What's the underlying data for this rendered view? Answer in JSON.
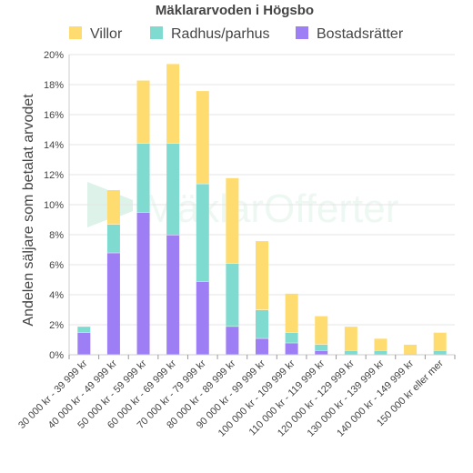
{
  "chart_data": {
    "type": "bar",
    "stacked": true,
    "title": "Mäklararvoden i Högsbo",
    "ylabel": "Andelen säljare som betalat arvodet",
    "xlabel": "",
    "ylim": [
      0,
      20
    ],
    "yticks": [
      "0%",
      "2%",
      "4%",
      "6%",
      "8%",
      "10%",
      "12%",
      "14%",
      "16%",
      "18%",
      "20%"
    ],
    "grid": true,
    "legend_position": "top",
    "categories": [
      "30 000 kr - 39 999 kr",
      "40 000 kr - 49 999 kr",
      "50 000 kr - 59 999 kr",
      "60 000 kr - 69 999 kr",
      "70 000 kr - 79 999 kr",
      "80 000 kr - 89 999 kr",
      "90 000 kr - 99 999 kr",
      "100 000 kr - 109 999 kr",
      "110 000 kr - 119 999 kr",
      "120 000 kr - 129 999 kr",
      "130 000 kr - 139 999 kr",
      "140 000 kr - 149 999 kr",
      "150 000 kr eller mer"
    ],
    "series": [
      {
        "name": "Bostadsrätter",
        "color": "#9e7ef5",
        "values": [
          1.5,
          6.8,
          9.5,
          8.0,
          4.9,
          1.9,
          1.1,
          0.8,
          0.3,
          0.0,
          0.0,
          0.0,
          0.0
        ]
      },
      {
        "name": "Radhus/parhus",
        "color": "#7fdad0",
        "values": [
          0.4,
          1.9,
          4.6,
          6.1,
          6.5,
          4.2,
          1.9,
          0.7,
          0.4,
          0.3,
          0.3,
          0.0,
          0.3
        ]
      },
      {
        "name": "Villor",
        "color": "#fedc70",
        "values": [
          0.0,
          2.3,
          4.2,
          5.3,
          6.2,
          5.7,
          4.6,
          2.6,
          1.9,
          1.6,
          0.8,
          0.7,
          1.2
        ]
      }
    ],
    "legend_order": [
      "Villor",
      "Radhus/parhus",
      "Bostadsrätter"
    ]
  },
  "watermark": {
    "text": "MäklarOfferter",
    "color": "#c8ead9"
  }
}
